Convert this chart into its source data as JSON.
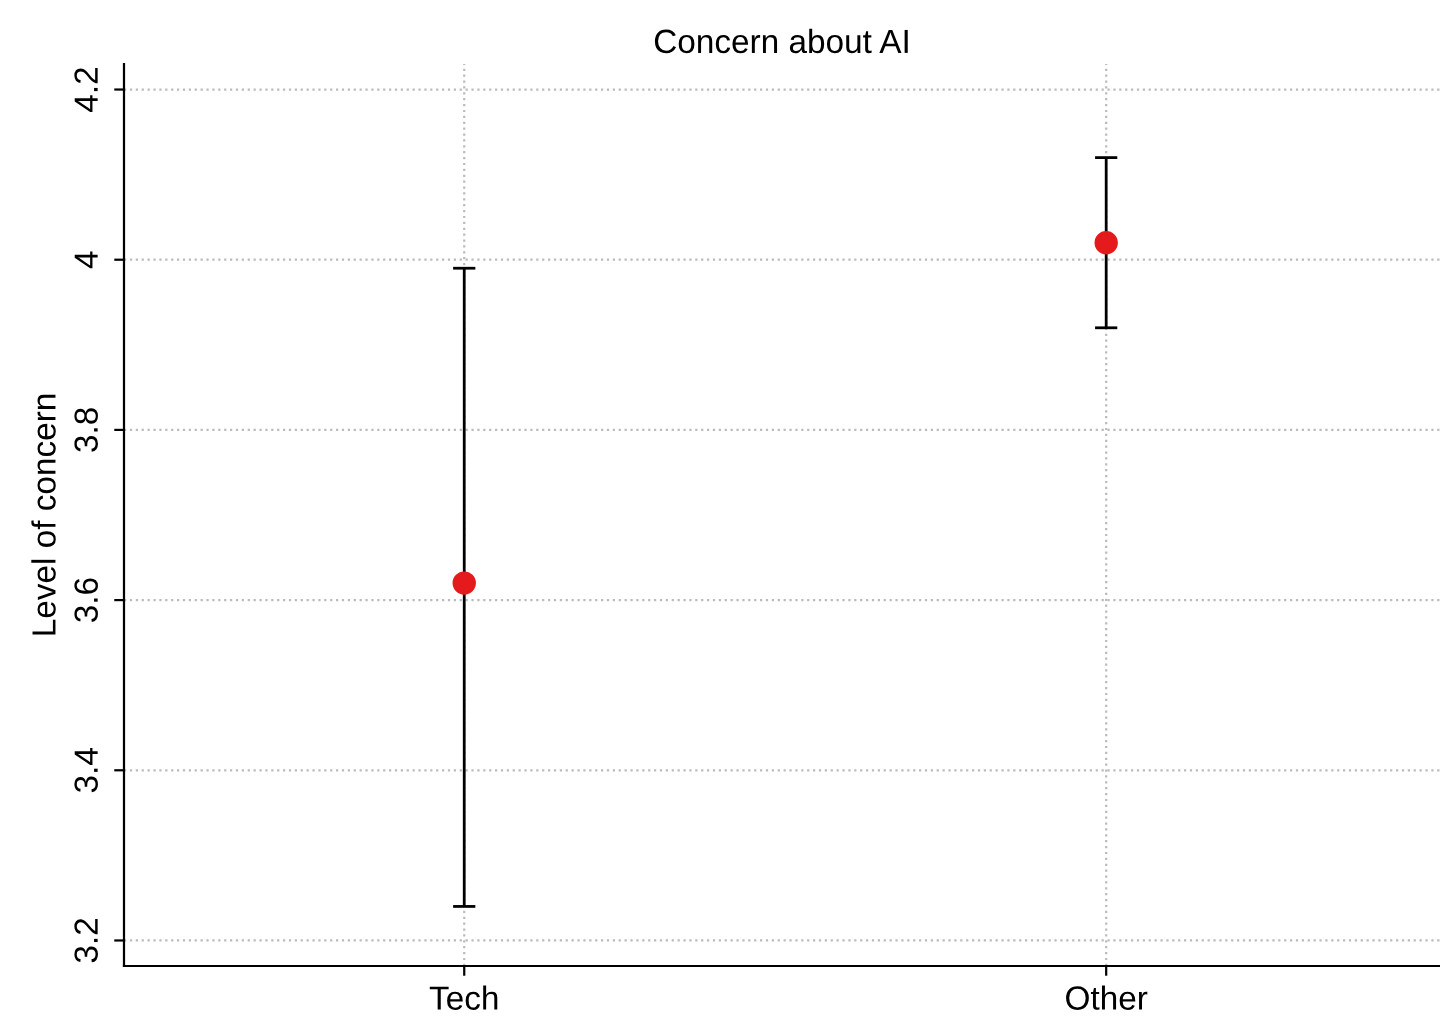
{
  "chart_data": {
    "type": "scatter",
    "title": "Concern about AI",
    "ylabel": "Level of concern",
    "categories": [
      "Tech",
      "Other"
    ],
    "series": [
      {
        "color": "#e41a1c",
        "values": [
          3.62,
          4.02
        ],
        "errors": [
          [
            3.24,
            3.99
          ],
          [
            3.92,
            4.12
          ]
        ]
      }
    ],
    "ylim": [
      3.17,
      4.23
    ],
    "yticks": [
      3.2,
      3.4,
      3.6,
      3.8,
      4,
      4.2
    ],
    "grid": true,
    "marker": "circle",
    "legend": false
  }
}
